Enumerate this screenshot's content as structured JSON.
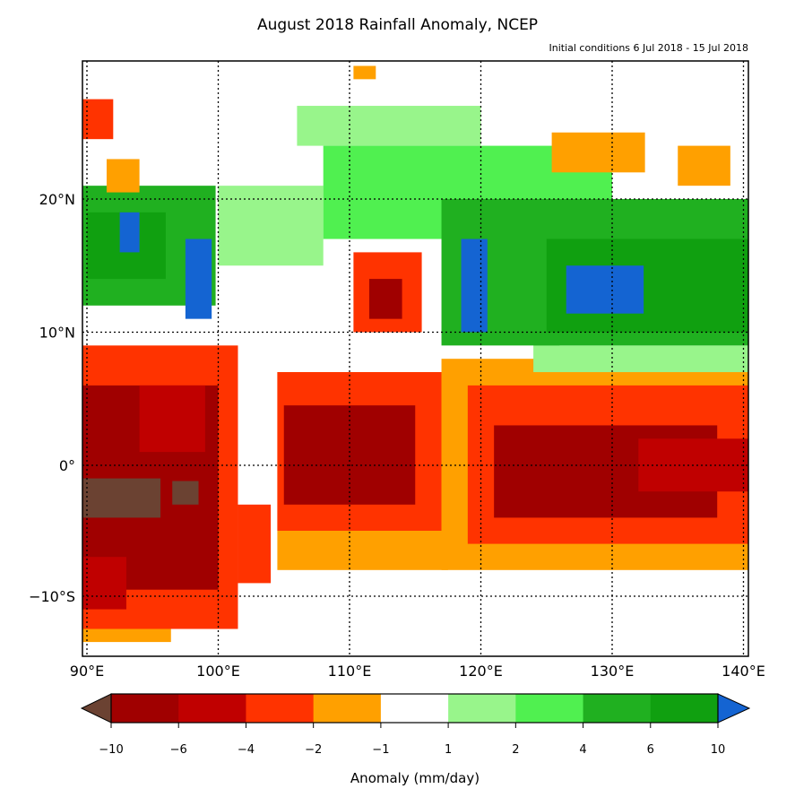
{
  "title": "August 2018 Rainfall Anomaly, NCEP",
  "subtitle": "Initial conditions 6 Jul 2018 - 15 Jul 2018",
  "map": {
    "extent_lon": [
      89.7,
      140.4
    ],
    "extent_lat": [
      -14.5,
      30
    ],
    "lon_ticks": [
      {
        "v": 90,
        "label": "90°E"
      },
      {
        "v": 100,
        "label": "100°E"
      },
      {
        "v": 110,
        "label": "110°E"
      },
      {
        "v": 120,
        "label": "120°E"
      },
      {
        "v": 130,
        "label": "130°E"
      },
      {
        "v": 140,
        "label": "140°E"
      }
    ],
    "lat_ticks": [
      {
        "v": 20,
        "label": "20°N"
      },
      {
        "v": 10,
        "label": "10°N"
      },
      {
        "v": 0,
        "label": "0°"
      },
      {
        "v": -10,
        "label": "−10°S"
      }
    ],
    "anomaly_regions": [
      {
        "lon": [
          89.7,
          101.5
        ],
        "lat": [
          -12.5,
          9
        ],
        "cat": 3
      },
      {
        "lon": [
          89.7,
          96.4
        ],
        "lat": [
          -13.5,
          -12.5
        ],
        "cat": 4
      },
      {
        "lon": [
          101.5,
          104
        ],
        "lat": [
          -9,
          -3
        ],
        "cat": 3
      },
      {
        "lon": [
          89.7,
          100
        ],
        "lat": [
          -9.5,
          6
        ],
        "cat": 1
      },
      {
        "lon": [
          89.7,
          93
        ],
        "lat": [
          -11,
          -7
        ],
        "cat": 2
      },
      {
        "lon": [
          94,
          99
        ],
        "lat": [
          1,
          6
        ],
        "cat": 2
      },
      {
        "lon": [
          89.7,
          95.6
        ],
        "lat": [
          -4,
          -1
        ],
        "cat": 0
      },
      {
        "lon": [
          96.5,
          98.5
        ],
        "lat": [
          -3,
          -1.2
        ],
        "cat": 0
      },
      {
        "lon": [
          104.5,
          117.5
        ],
        "lat": [
          -8,
          7
        ],
        "cat": 4
      },
      {
        "lon": [
          104.5,
          117
        ],
        "lat": [
          -5,
          7
        ],
        "cat": 3
      },
      {
        "lon": [
          105,
          115
        ],
        "lat": [
          -3,
          4.5
        ],
        "cat": 1
      },
      {
        "lon": [
          110.3,
          115.5
        ],
        "lat": [
          10,
          16
        ],
        "cat": 3
      },
      {
        "lon": [
          111.5,
          114
        ],
        "lat": [
          11,
          14
        ],
        "cat": 1
      },
      {
        "lon": [
          117,
          140.4
        ],
        "lat": [
          -8,
          8
        ],
        "cat": 4
      },
      {
        "lon": [
          119,
          140.4
        ],
        "lat": [
          -6,
          6
        ],
        "cat": 3
      },
      {
        "lon": [
          121,
          138
        ],
        "lat": [
          -4,
          3
        ],
        "cat": 1
      },
      {
        "lon": [
          132,
          140.4
        ],
        "lat": [
          -2,
          2
        ],
        "cat": 2
      },
      {
        "lon": [
          100,
          108
        ],
        "lat": [
          15,
          21
        ],
        "cat": 6
      },
      {
        "lon": [
          106,
          120
        ],
        "lat": [
          24,
          27
        ],
        "cat": 6
      },
      {
        "lon": [
          108,
          130
        ],
        "lat": [
          17,
          24
        ],
        "cat": 7
      },
      {
        "lon": [
          117,
          126
        ],
        "lat": [
          9,
          20
        ],
        "cat": 8
      },
      {
        "lon": [
          118.5,
          120.5
        ],
        "lat": [
          10,
          17
        ],
        "cat": 10
      },
      {
        "lon": [
          124,
          140.4
        ],
        "lat": [
          7,
          9
        ],
        "cat": 6
      },
      {
        "lon": [
          124,
          140.4
        ],
        "lat": [
          9,
          20
        ],
        "cat": 8
      },
      {
        "lon": [
          125,
          140.4
        ],
        "lat": [
          10,
          17
        ],
        "cat": 9
      },
      {
        "lon": [
          126.5,
          132.4
        ],
        "lat": [
          11.4,
          15
        ],
        "cat": 10
      },
      {
        "lon": [
          125.4,
          132.5
        ],
        "lat": [
          22,
          25
        ],
        "cat": 4
      },
      {
        "lon": [
          135,
          139
        ],
        "lat": [
          21,
          24
        ],
        "cat": 4
      },
      {
        "lon": [
          89.7,
          99.8
        ],
        "lat": [
          12,
          21
        ],
        "cat": 8
      },
      {
        "lon": [
          90,
          96
        ],
        "lat": [
          14,
          19
        ],
        "cat": 9
      },
      {
        "lon": [
          92.5,
          94
        ],
        "lat": [
          16,
          19
        ],
        "cat": 10
      },
      {
        "lon": [
          97.5,
          99.5
        ],
        "lat": [
          11,
          17
        ],
        "cat": 10
      },
      {
        "lon": [
          89.7,
          92
        ],
        "lat": [
          24.5,
          27.5
        ],
        "cat": 3
      },
      {
        "lon": [
          91.5,
          94
        ],
        "lat": [
          20.5,
          23
        ],
        "cat": 4
      },
      {
        "lon": [
          110.3,
          112
        ],
        "lat": [
          29,
          30
        ],
        "cat": 4
      }
    ]
  },
  "colorbar": {
    "label": "Anomaly (mm/day)",
    "under_color": "#6b4232",
    "over_color": "#1464d2",
    "colors": [
      "#a00000",
      "#c00000",
      "#ff3300",
      "#ffa000",
      "#ffffff",
      "#98f58b",
      "#50f050",
      "#20b020",
      "#10a010"
    ],
    "category_colors": [
      "#6b4232",
      "#a00000",
      "#c00000",
      "#ff3300",
      "#ffa000",
      "#ffffff",
      "#98f58b",
      "#50f050",
      "#20b020",
      "#10a010",
      "#1464d2"
    ],
    "ticks": [
      "−10",
      "−6",
      "−4",
      "−2",
      "−1",
      "1",
      "2",
      "4",
      "6",
      "10"
    ]
  }
}
